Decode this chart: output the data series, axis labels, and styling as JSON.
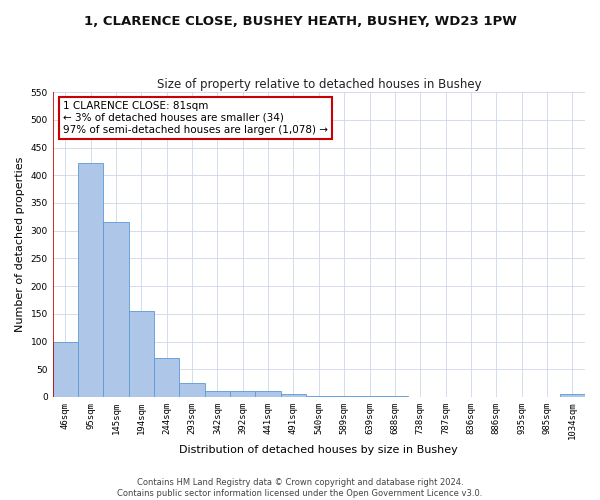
{
  "title": "1, CLARENCE CLOSE, BUSHEY HEATH, BUSHEY, WD23 1PW",
  "subtitle": "Size of property relative to detached houses in Bushey",
  "xlabel": "Distribution of detached houses by size in Bushey",
  "ylabel": "Number of detached properties",
  "categories": [
    "46sqm",
    "95sqm",
    "145sqm",
    "194sqm",
    "244sqm",
    "293sqm",
    "342sqm",
    "392sqm",
    "441sqm",
    "491sqm",
    "540sqm",
    "589sqm",
    "639sqm",
    "688sqm",
    "738sqm",
    "787sqm",
    "836sqm",
    "886sqm",
    "935sqm",
    "985sqm",
    "1034sqm"
  ],
  "values": [
    100,
    422,
    315,
    156,
    71,
    25,
    11,
    11,
    10,
    5,
    1,
    1,
    1,
    1,
    0,
    0,
    0,
    0,
    0,
    0,
    5
  ],
  "bar_color": "#aec6e8",
  "bar_edge_color": "#5b9bd5",
  "property_line_color": "#cc0000",
  "annotation_text": "1 CLARENCE CLOSE: 81sqm\n← 3% of detached houses are smaller (34)\n97% of semi-detached houses are larger (1,078) →",
  "annotation_box_color": "#ffffff",
  "annotation_box_edge_color": "#cc0000",
  "ylim": [
    0,
    550
  ],
  "yticks": [
    0,
    50,
    100,
    150,
    200,
    250,
    300,
    350,
    400,
    450,
    500,
    550
  ],
  "footer": "Contains HM Land Registry data © Crown copyright and database right 2024.\nContains public sector information licensed under the Open Government Licence v3.0.",
  "background_color": "#ffffff",
  "grid_color": "#cdd6e8",
  "title_fontsize": 9.5,
  "subtitle_fontsize": 8.5,
  "xlabel_fontsize": 8,
  "ylabel_fontsize": 8,
  "tick_fontsize": 6.5,
  "annotation_fontsize": 7.5,
  "footer_fontsize": 6
}
